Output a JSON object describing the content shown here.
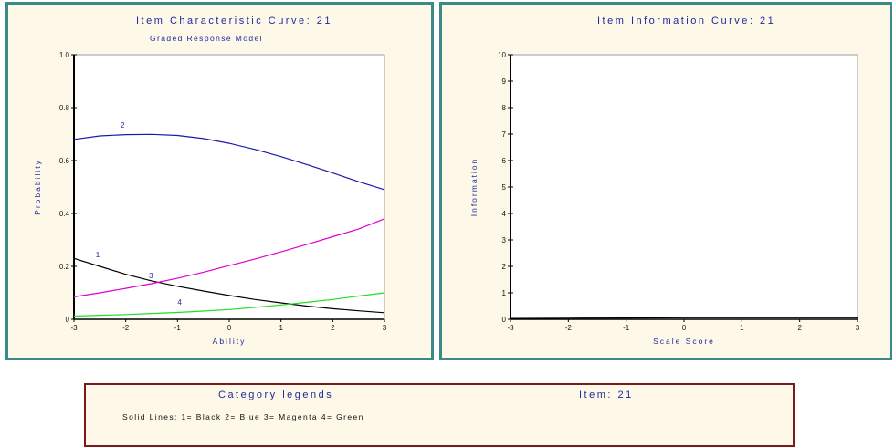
{
  "icc": {
    "title": "Item Characteristic Curve: 21",
    "subtitle": "Graded Response Model"
  },
  "iic": {
    "title": "Item Information Curve: 21"
  },
  "legend": {
    "title": "Category legends",
    "item": "Item: 21",
    "lines": "Solid Lines: 1= Black  2= Blue  3= Magenta  4= Green"
  },
  "chart_data": [
    {
      "type": "line",
      "title": "Item Characteristic Curve: 21",
      "subtitle": "Graded Response Model",
      "xlabel": "Ability",
      "ylabel": "Probability",
      "xlim": [
        -3,
        3
      ],
      "ylim": [
        0,
        1.0
      ],
      "xticks": [
        "-3",
        "-2",
        "-1",
        "0",
        "1",
        "2",
        "3"
      ],
      "yticks": [
        "0",
        "0.2",
        "0.4",
        "0.6",
        "0.8",
        "1.0"
      ],
      "grid": false,
      "series": [
        {
          "name": "1",
          "color": "#000000",
          "x": [
            -3,
            -2.5,
            -2,
            -1.5,
            -1,
            -0.5,
            0,
            0.5,
            1,
            1.5,
            2,
            2.5,
            3
          ],
          "y": [
            0.23,
            0.2,
            0.17,
            0.145,
            0.125,
            0.107,
            0.09,
            0.075,
            0.062,
            0.05,
            0.04,
            0.032,
            0.025
          ]
        },
        {
          "name": "2",
          "color": "#1a1aa8",
          "x": [
            -3,
            -2.5,
            -2,
            -1.5,
            -1,
            -0.5,
            0,
            0.5,
            1,
            1.5,
            2,
            2.5,
            3
          ],
          "y": [
            0.68,
            0.693,
            0.698,
            0.699,
            0.695,
            0.683,
            0.665,
            0.642,
            0.615,
            0.585,
            0.553,
            0.52,
            0.49
          ]
        },
        {
          "name": "3",
          "color": "#e000d0",
          "x": [
            -3,
            -2.5,
            -2,
            -1.5,
            -1,
            -0.5,
            0,
            0.5,
            1,
            1.5,
            2,
            2.5,
            3
          ],
          "y": [
            0.085,
            0.1,
            0.117,
            0.135,
            0.155,
            0.178,
            0.203,
            0.228,
            0.255,
            0.283,
            0.312,
            0.341,
            0.38
          ]
        },
        {
          "name": "4",
          "color": "#22dd22",
          "x": [
            -3,
            -2.5,
            -2,
            -1.5,
            -1,
            -0.5,
            0,
            0.5,
            1,
            1.5,
            2,
            2.5,
            3
          ],
          "y": [
            0.012,
            0.015,
            0.018,
            0.022,
            0.026,
            0.031,
            0.037,
            0.045,
            0.054,
            0.064,
            0.075,
            0.088,
            0.1
          ]
        }
      ]
    },
    {
      "type": "line",
      "title": "Item Information Curve: 21",
      "xlabel": "Scale Score",
      "ylabel": "Information",
      "xlim": [
        -3,
        3
      ],
      "ylim": [
        0,
        10
      ],
      "xticks": [
        "-3",
        "-2",
        "-1",
        "0",
        "1",
        "2",
        "3"
      ],
      "yticks": [
        "0",
        "1",
        "2",
        "3",
        "4",
        "5",
        "6",
        "7",
        "8",
        "9",
        "10"
      ],
      "grid": false,
      "series": [
        {
          "name": "",
          "color": "#000000",
          "x": [
            -3,
            -2,
            -1,
            0,
            1,
            2,
            3
          ],
          "y": [
            0.03,
            0.04,
            0.05,
            0.06,
            0.06,
            0.06,
            0.06
          ]
        }
      ]
    }
  ]
}
